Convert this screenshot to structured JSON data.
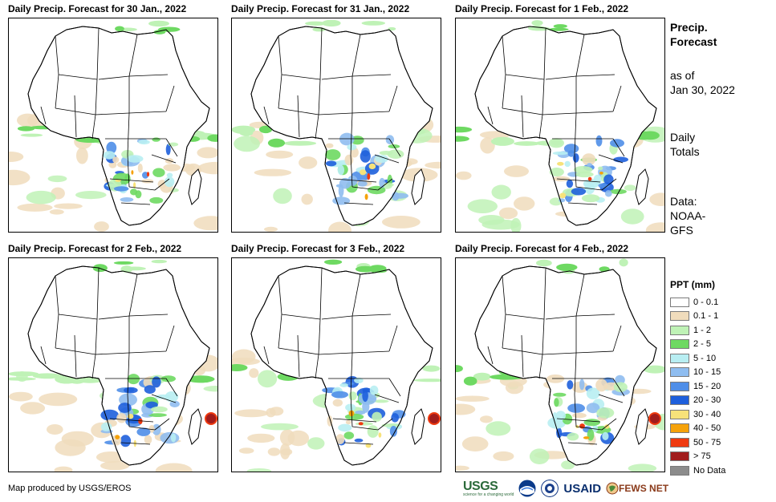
{
  "panels": [
    {
      "title": "Daily Precip. Forecast for 30 Jan., 2022",
      "pos": "top-left"
    },
    {
      "title": "Daily Precip. Forecast for 31 Jan., 2022",
      "pos": "top-center"
    },
    {
      "title": "Daily Precip. Forecast for 1 Feb., 2022",
      "pos": "top-right"
    },
    {
      "title": "Daily Precip. Forecast for 2 Feb., 2022",
      "pos": "bottom-left"
    },
    {
      "title": "Daily Precip. Forecast for 3 Feb., 2022",
      "pos": "bottom-center"
    },
    {
      "title": "Daily Precip. Forecast for 4 Feb., 2022",
      "pos": "bottom-right"
    }
  ],
  "sidebar": {
    "title_line1": "Precip.",
    "title_line2": "Forecast",
    "asof_line1": "as of",
    "asof_line2": "Jan 30, 2022",
    "totals_line1": "Daily",
    "totals_line2": "Totals",
    "data_line1": "Data:",
    "data_line2": "NOAA-",
    "data_line3": "GFS"
  },
  "legend": {
    "title": "PPT (mm)",
    "items": [
      {
        "label": "0 - 0.1",
        "color": "#ffffff"
      },
      {
        "label": "0.1 - 1",
        "color": "#f0dcbc"
      },
      {
        "label": "1 - 2",
        "color": "#bff2b6"
      },
      {
        "label": "2 - 5",
        "color": "#6ed962"
      },
      {
        "label": "5 - 10",
        "color": "#b8eef2"
      },
      {
        "label": "10 - 15",
        "color": "#8fbdf0"
      },
      {
        "label": "15 - 20",
        "color": "#4f8ee8"
      },
      {
        "label": "20 - 30",
        "color": "#1e5fdc"
      },
      {
        "label": "30 - 40",
        "color": "#f7e27a"
      },
      {
        "label": "40 - 50",
        "color": "#f5a20a"
      },
      {
        "label": "50 - 75",
        "color": "#ef3a10"
      },
      {
        "label": "> 75",
        "color": "#a11c1c"
      },
      {
        "label": "No Data",
        "color": "#8c8c8c"
      }
    ]
  },
  "credit": "Map produced by USGS/EROS",
  "logos": {
    "usgs": "USGS",
    "usgs_tag": "science for a changing world",
    "usaid": "USAID",
    "fews": "FEWS NET"
  }
}
